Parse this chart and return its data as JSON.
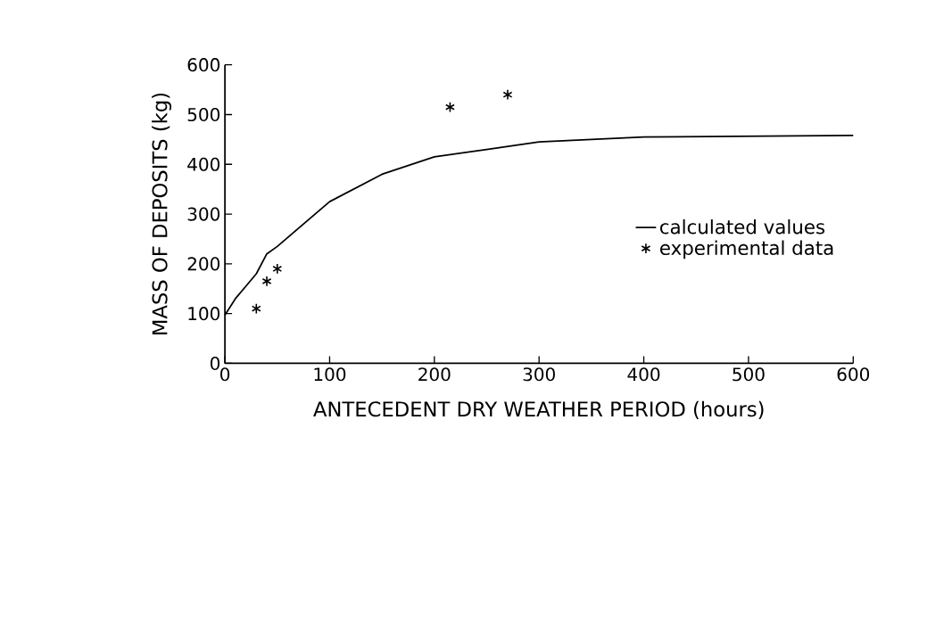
{
  "chart_data": {
    "type": "line",
    "xlabel": "ANTECEDENT DRY WEATHER PERIOD (hours)",
    "ylabel": "MASS OF DEPOSITS (kg)",
    "xlim": [
      0,
      600
    ],
    "ylim": [
      0,
      600
    ],
    "xticks": [
      0,
      100,
      200,
      300,
      400,
      500,
      600
    ],
    "yticks": [
      0,
      100,
      200,
      300,
      400,
      500,
      600
    ],
    "legend": "right",
    "grid": false,
    "series": [
      {
        "name": "calculated values",
        "color": "#000000",
        "marker": "none",
        "line_style": "solid",
        "x": [
          0,
          10,
          20,
          30,
          40,
          50,
          100,
          150,
          200,
          250,
          300,
          400,
          600
        ],
        "values": [
          97,
          130,
          155,
          180,
          220,
          235,
          325,
          380,
          415,
          430,
          445,
          455,
          458
        ]
      },
      {
        "name": "experimental data",
        "type": "scatter",
        "color": "#000000",
        "marker": "cross",
        "x": [
          30,
          40,
          50,
          215,
          270
        ],
        "values": [
          110,
          165,
          190,
          515,
          540
        ]
      }
    ]
  }
}
